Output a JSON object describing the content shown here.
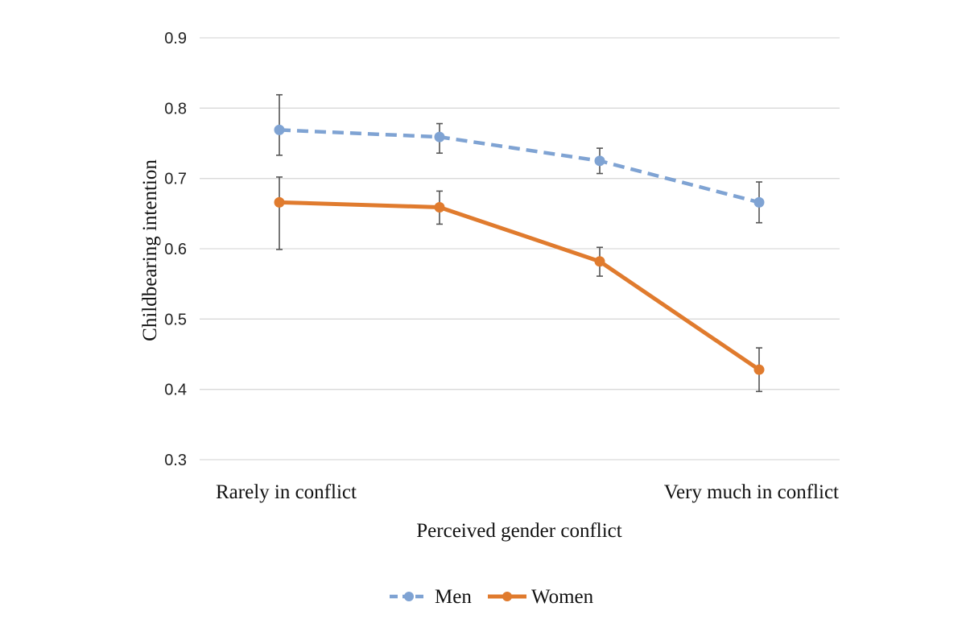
{
  "chart_data": {
    "type": "line",
    "title": "",
    "xlabel": "Perceived gender conflict",
    "ylabel": "Childbearing intention",
    "categories": [
      "Rarely in conflict",
      "",
      "",
      "Very much in conflict"
    ],
    "ylim": [
      0.3,
      0.9
    ],
    "yticks": [
      "0.9",
      "0.8",
      "0.7",
      "0.6",
      "0.5",
      "0.4",
      "0.3"
    ],
    "grid": true,
    "legend": "bottom",
    "series": [
      {
        "name": "Men",
        "color": "#7FA3D3",
        "style": "dashed",
        "values": [
          0.769,
          0.759,
          0.725,
          0.666
        ],
        "err_low": [
          0.733,
          0.736,
          0.707,
          0.637
        ],
        "err_high": [
          0.819,
          0.778,
          0.743,
          0.695
        ]
      },
      {
        "name": "Women",
        "color": "#E07B2E",
        "style": "solid",
        "values": [
          0.666,
          0.659,
          0.582,
          0.428
        ],
        "err_low": [
          0.599,
          0.635,
          0.561,
          0.397
        ],
        "err_high": [
          0.702,
          0.682,
          0.602,
          0.459
        ]
      }
    ]
  }
}
